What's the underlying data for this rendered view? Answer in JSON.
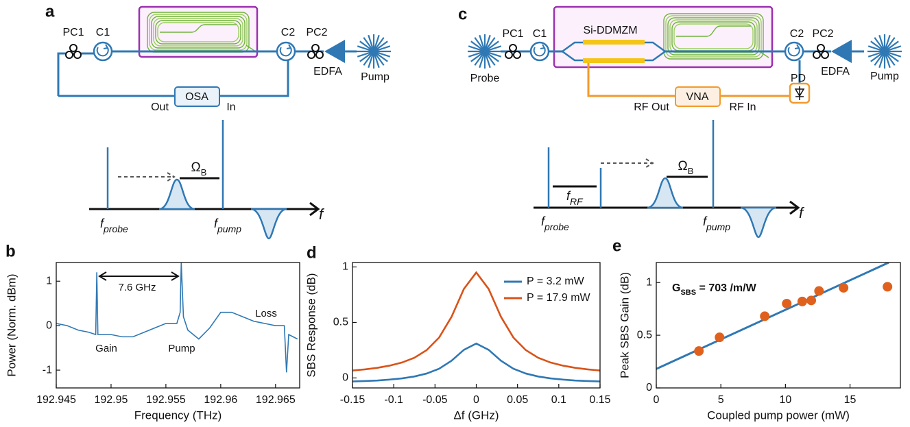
{
  "panel_labels": [
    "a",
    "b",
    "c",
    "d",
    "e"
  ],
  "diagram_a": {
    "pc1": "PC1",
    "c1": "C1",
    "c2": "C2",
    "pc2": "PC2",
    "edfa": "EDFA",
    "pump": "Pump",
    "osa": "OSA",
    "out": "Out",
    "in": "In",
    "omega": {
      "main": "Ω",
      "sub": "B"
    },
    "f_probe": {
      "main": "f",
      "sub": "probe"
    },
    "f_pump": {
      "main": "f",
      "sub": "pump"
    },
    "f_axis": "f"
  },
  "diagram_c": {
    "probe": "Probe",
    "pc1": "PC1",
    "c1": "C1",
    "modulator": "Si-DDMZM",
    "c2": "C2",
    "pc2": "PC2",
    "pd": "PD",
    "edfa": "EDFA",
    "pump": "Pump",
    "vna": "VNA",
    "rf_out": "RF Out",
    "rf_in": "RF In",
    "omega": {
      "main": "Ω",
      "sub": "B"
    },
    "f_rf": {
      "main": "f",
      "sub": "RF"
    },
    "f_probe": {
      "main": "f",
      "sub": "probe"
    },
    "f_pump": {
      "main": "f",
      "sub": "pump"
    },
    "f_axis": "f"
  },
  "chart_data": [
    {
      "type": "line",
      "xlabel": "Frequency (THz)",
      "ylabel": "Power (Norm. dBm)",
      "xlim": [
        192.945,
        192.9672
      ],
      "xticks": [
        192.945,
        192.95,
        192.955,
        192.96,
        192.965
      ],
      "ylim": [
        -1.4,
        1.42
      ],
      "yticks": [
        -1,
        0,
        1
      ],
      "color": "#2f78b4",
      "x": [
        192.945,
        192.946,
        192.947,
        192.948,
        192.9486,
        192.9487,
        192.9488,
        192.95,
        192.951,
        192.952,
        192.953,
        192.954,
        192.955,
        192.956,
        192.9563,
        192.9564,
        192.9566,
        192.957,
        192.958,
        192.959,
        192.96,
        192.961,
        192.962,
        192.963,
        192.964,
        192.965,
        192.9658,
        192.966,
        192.9662,
        192.967
      ],
      "values": [
        0.05,
        0.0,
        -0.1,
        -0.15,
        -0.2,
        1.2,
        -0.2,
        -0.2,
        -0.25,
        -0.25,
        -0.15,
        -0.05,
        0.05,
        0.05,
        0.3,
        1.42,
        0.2,
        -0.1,
        -0.3,
        -0.05,
        0.3,
        0.3,
        0.2,
        0.1,
        0.05,
        0.0,
        0.0,
        -1.05,
        -0.2,
        -0.3
      ],
      "annotations": [
        "7.6 GHz",
        "Gain",
        "Pump",
        "Loss"
      ]
    },
    {
      "type": "line",
      "xlabel": "Δf (GHz)",
      "ylabel": "SBS Response (dB)",
      "xlim": [
        -0.15,
        0.15
      ],
      "xticks": [
        -0.15,
        -0.1,
        -0.05,
        0,
        0.05,
        0.1,
        0.15
      ],
      "ylim": [
        -0.09,
        1.04
      ],
      "yticks": [
        0,
        0.5,
        1
      ],
      "legend": "upper right",
      "x": [
        -0.15,
        -0.135,
        -0.12,
        -0.105,
        -0.09,
        -0.075,
        -0.06,
        -0.045,
        -0.03,
        -0.015,
        0,
        0.015,
        0.03,
        0.045,
        0.06,
        0.075,
        0.09,
        0.105,
        0.12,
        0.135,
        0.15
      ],
      "series": [
        {
          "name": "P = 3.2 mW",
          "color": "#2f78b4",
          "values": [
            -0.032,
            -0.028,
            -0.023,
            -0.015,
            -0.004,
            0.013,
            0.04,
            0.083,
            0.155,
            0.253,
            0.31,
            0.253,
            0.155,
            0.083,
            0.04,
            0.013,
            -0.004,
            -0.015,
            -0.023,
            -0.028,
            -0.032
          ]
        },
        {
          "name": "P = 17.9 mW",
          "color": "#d95319",
          "values": [
            0.067,
            0.077,
            0.091,
            0.111,
            0.139,
            0.182,
            0.251,
            0.364,
            0.55,
            0.802,
            0.95,
            0.802,
            0.55,
            0.364,
            0.251,
            0.182,
            0.139,
            0.111,
            0.091,
            0.077,
            0.067
          ]
        }
      ]
    },
    {
      "type": "scatter",
      "xlabel": "Coupled pump power (mW)",
      "ylabel": "Peak SBS Gain (dB)",
      "xlim": [
        0,
        18.9
      ],
      "xticks": [
        0,
        5,
        10,
        15
      ],
      "ylim": [
        0,
        1.19
      ],
      "yticks": [
        0,
        0.5,
        1
      ],
      "color": "#e0611d",
      "x": [
        3.3,
        4.9,
        8.4,
        10.1,
        11.3,
        12.0,
        12.6,
        14.5,
        17.9
      ],
      "values": [
        0.35,
        0.48,
        0.68,
        0.8,
        0.82,
        0.83,
        0.92,
        0.95,
        0.96
      ],
      "fit": {
        "x": [
          0,
          18
        ],
        "values": [
          0.18,
          1.19
        ],
        "color": "#2f78b4"
      },
      "annotation": {
        "main": "G",
        "sub": "SBS",
        "rest": " = 703 /m/W"
      }
    }
  ]
}
